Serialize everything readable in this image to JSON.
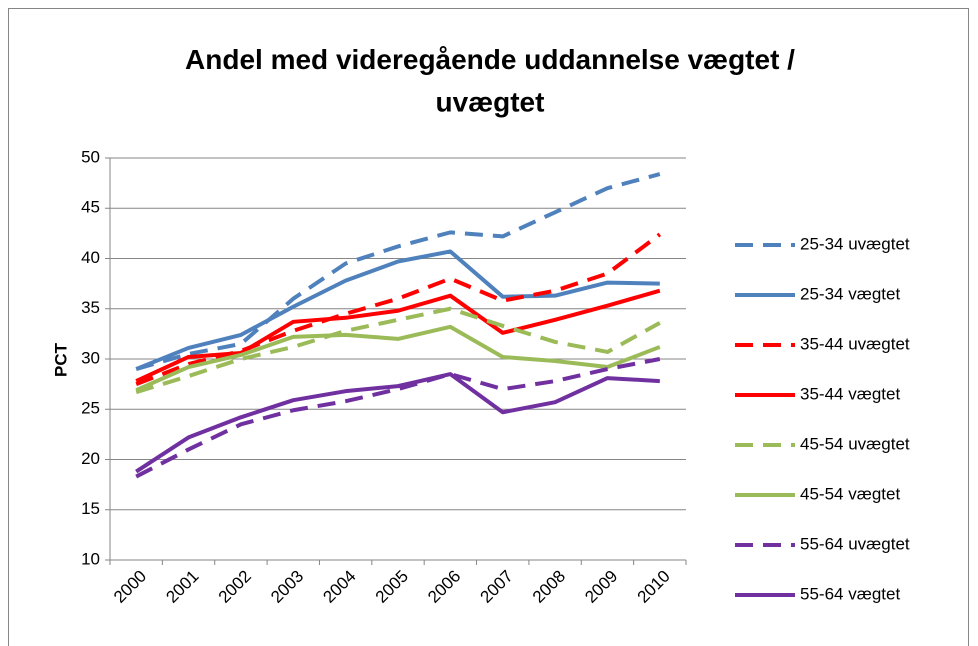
{
  "chart_data": {
    "type": "line",
    "title": "Andel med videregående uddannelse vægtet / uvægtet",
    "y_label": "PCT",
    "categories": [
      "2000",
      "2001",
      "2002",
      "2003",
      "2004",
      "2005",
      "2006",
      "2007",
      "2008",
      "2009",
      "2010"
    ],
    "ylim": [
      10,
      50
    ],
    "yticks": [
      10,
      15,
      20,
      25,
      30,
      35,
      40,
      45,
      50
    ],
    "grid": true,
    "legend": "right",
    "series": [
      {
        "name": "25-34 uvægtet",
        "color": "#4f81bd",
        "style": "dashed",
        "values": [
          29,
          30.5,
          31.5,
          36,
          39.5,
          41.2,
          42.6,
          42.2,
          44.6,
          47,
          48.4
        ]
      },
      {
        "name": "25-34 vægtet",
        "color": "#4f81bd",
        "style": "solid",
        "values": [
          29,
          31.1,
          32.4,
          35.2,
          37.8,
          39.7,
          40.7,
          36.2,
          36.3,
          37.6,
          37.5
        ]
      },
      {
        "name": "35-44 uvægtet",
        "color": "#ff0000",
        "style": "dashed",
        "values": [
          27.5,
          29.5,
          30.8,
          32.8,
          34.5,
          36,
          38,
          35.8,
          36.8,
          38.5,
          42.4
        ]
      },
      {
        "name": "35-44 vægtet",
        "color": "#ff0000",
        "style": "solid",
        "values": [
          27.8,
          30.2,
          30.6,
          33.7,
          34.1,
          34.8,
          36.3,
          32.6,
          33.9,
          35.3,
          36.8
        ]
      },
      {
        "name": "45-54 uvægtet",
        "color": "#9bbb59",
        "style": "dashed",
        "values": [
          26.7,
          28.3,
          30,
          31.2,
          32.8,
          33.9,
          35,
          33.3,
          31.7,
          30.7,
          33.6
        ]
      },
      {
        "name": "45-54 vægtet",
        "color": "#9bbb59",
        "style": "solid",
        "values": [
          26.9,
          29.2,
          30.4,
          32.2,
          32.4,
          32,
          33.2,
          30.2,
          29.8,
          29.2,
          31.2
        ]
      },
      {
        "name": "55-64 uvægtet",
        "color": "#7030a0",
        "style": "dashed",
        "values": [
          18.3,
          21,
          23.5,
          24.9,
          25.8,
          27,
          28.5,
          27,
          27.8,
          29,
          30
        ]
      },
      {
        "name": "55-64 vægtet",
        "color": "#7030a0",
        "style": "solid",
        "values": [
          18.8,
          22.2,
          24.2,
          25.9,
          26.8,
          27.3,
          28.5,
          24.7,
          25.7,
          28.1,
          27.8
        ]
      }
    ]
  }
}
